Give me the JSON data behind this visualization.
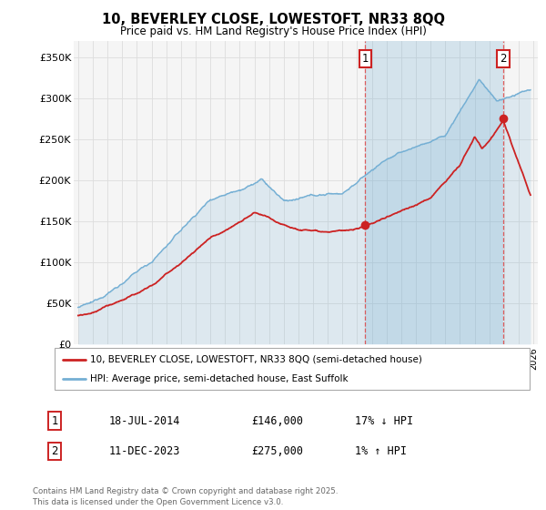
{
  "title": "10, BEVERLEY CLOSE, LOWESTOFT, NR33 8QQ",
  "subtitle": "Price paid vs. HM Land Registry's House Price Index (HPI)",
  "ylabel_ticks": [
    "£0",
    "£50K",
    "£100K",
    "£150K",
    "£200K",
    "£250K",
    "£300K",
    "£350K"
  ],
  "ytick_values": [
    0,
    50000,
    100000,
    150000,
    200000,
    250000,
    300000,
    350000
  ],
  "ylim": [
    0,
    370000
  ],
  "xlim_start": 1995,
  "xlim_end": 2026,
  "hpi_color": "#74afd4",
  "hpi_fill_color": "#d6e8f5",
  "price_color": "#cc2222",
  "sale1_date": "18-JUL-2014",
  "sale1_price": 146000,
  "sale1_label": "17% ↓ HPI",
  "sale2_date": "11-DEC-2023",
  "sale2_price": 275000,
  "sale2_label": "1% ↑ HPI",
  "sale1_year": 2014.54,
  "sale2_year": 2023.94,
  "legend_line1": "10, BEVERLEY CLOSE, LOWESTOFT, NR33 8QQ (semi-detached house)",
  "legend_line2": "HPI: Average price, semi-detached house, East Suffolk",
  "footnote": "Contains HM Land Registry data © Crown copyright and database right 2025.\nThis data is licensed under the Open Government Licence v3.0.",
  "background_color": "#ffffff",
  "plot_bg_color": "#f5f5f5",
  "grid_color": "#dddddd"
}
